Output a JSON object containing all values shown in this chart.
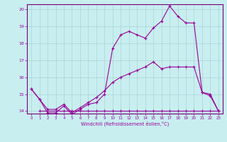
{
  "bg_color": "#c8eef0",
  "line_color": "#990099",
  "line1_x": [
    0,
    1,
    2,
    3,
    4,
    5,
    6,
    7,
    8,
    9,
    10,
    11,
    12,
    13,
    14,
    15,
    16,
    17,
    18,
    19,
    20,
    21,
    22,
    23
  ],
  "line1_y": [
    15.3,
    14.7,
    13.9,
    13.9,
    14.3,
    13.8,
    14.1,
    14.4,
    14.5,
    15.0,
    17.7,
    18.5,
    18.7,
    18.5,
    18.3,
    18.9,
    19.3,
    20.2,
    19.6,
    19.2,
    19.2,
    15.1,
    14.9,
    14.0
  ],
  "line2_x": [
    0,
    1,
    2,
    3,
    4,
    5,
    6,
    7,
    8,
    9,
    10,
    11,
    12,
    13,
    14,
    15,
    16,
    17,
    18,
    19,
    20,
    21,
    22,
    23
  ],
  "line2_y": [
    15.3,
    14.7,
    14.1,
    14.1,
    14.4,
    13.9,
    14.2,
    14.5,
    14.8,
    15.2,
    15.7,
    16.0,
    16.2,
    16.4,
    16.6,
    16.9,
    16.5,
    16.6,
    16.6,
    16.6,
    16.6,
    15.1,
    15.0,
    14.0
  ],
  "line3_x": [
    1,
    2,
    3,
    4,
    5,
    6,
    7,
    8,
    9,
    10,
    11,
    12,
    13,
    14,
    15,
    16,
    17,
    18,
    19,
    20,
    21,
    22,
    23
  ],
  "line3_y": [
    14.0,
    14.0,
    14.0,
    14.0,
    14.0,
    14.0,
    14.0,
    14.0,
    14.0,
    14.0,
    14.0,
    14.0,
    14.0,
    14.0,
    14.0,
    14.0,
    14.0,
    14.0,
    14.0,
    14.0,
    14.0,
    14.0,
    14.0
  ],
  "xmin": 0,
  "xmax": 23,
  "ymin": 14,
  "ymax": 20,
  "xlabel": "Windchill (Refroidissement éolien,°C)",
  "xticks": [
    0,
    1,
    2,
    3,
    4,
    5,
    6,
    7,
    8,
    9,
    10,
    11,
    12,
    13,
    14,
    15,
    16,
    17,
    18,
    19,
    20,
    21,
    22,
    23
  ],
  "yticks": [
    14,
    15,
    16,
    17,
    18,
    19,
    20
  ],
  "grid_color": "#aad4d6",
  "spine_color": "#7a007a"
}
